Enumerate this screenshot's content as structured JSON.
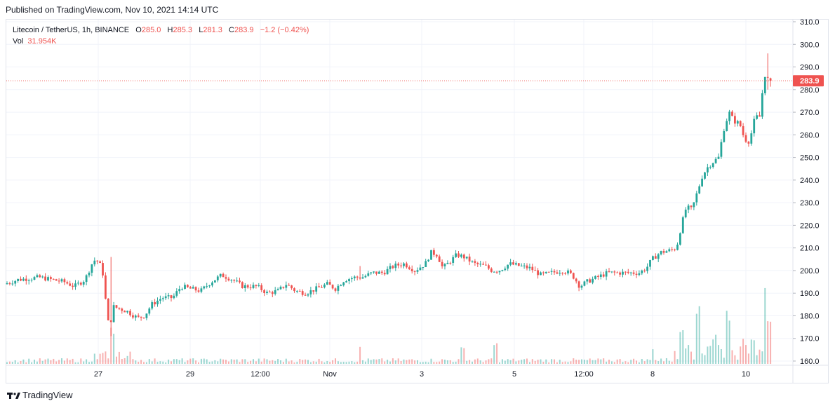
{
  "header": {
    "published": "Published on TradingView.com, Nov 10, 2021 14:14 UTC"
  },
  "legend": {
    "symbol": "Litecoin / TetherUS, 1h, BINANCE",
    "o_label": "O",
    "o_value": "285.0",
    "h_label": "H",
    "h_value": "285.3",
    "l_label": "L",
    "l_value": "281.3",
    "c_label": "C",
    "c_value": "283.9",
    "change": "−1.2 (−0.42%)",
    "vol_label": "Vol",
    "vol_value": "31.954K"
  },
  "footer": {
    "brand": "TradingView"
  },
  "colors": {
    "up": "#26a69a",
    "down": "#ef5350",
    "grid": "#f0f3fa",
    "axis_text": "#131722",
    "last_price": "#ef5350"
  },
  "chart_data": {
    "type": "candlestick",
    "symbol": "Litecoin / TetherUS",
    "interval": "1h",
    "exchange": "BINANCE",
    "ylim": [
      158,
      312
    ],
    "y_ticks": [
      "160.0",
      "170.0",
      "180.0",
      "190.0",
      "200.0",
      "210.0",
      "220.0",
      "230.0",
      "240.0",
      "250.0",
      "260.0",
      "270.0",
      "280.0",
      "290.0",
      "300.0",
      "310.0"
    ],
    "x_ticks": [
      "27",
      "29",
      "12:00",
      "Nov",
      "3",
      "5",
      "12:00",
      "8",
      "10"
    ],
    "last_price": "283.9",
    "grid": true,
    "price_path": [
      [
        0,
        193
      ],
      [
        30,
        196
      ],
      [
        60,
        197
      ],
      [
        95,
        195
      ],
      [
        110,
        193
      ],
      [
        125,
        196
      ],
      [
        135,
        203
      ],
      [
        140,
        205
      ],
      [
        146,
        203
      ],
      [
        152,
        197
      ],
      [
        156,
        180
      ],
      [
        160,
        175
      ],
      [
        166,
        184
      ],
      [
        185,
        182
      ],
      [
        200,
        179
      ],
      [
        210,
        180
      ],
      [
        220,
        185
      ],
      [
        235,
        188
      ],
      [
        250,
        188
      ],
      [
        262,
        193
      ],
      [
        275,
        192
      ],
      [
        290,
        191
      ],
      [
        305,
        195
      ],
      [
        320,
        198
      ],
      [
        335,
        196
      ],
      [
        350,
        193
      ],
      [
        370,
        193
      ],
      [
        385,
        190
      ],
      [
        400,
        191
      ],
      [
        412,
        194
      ],
      [
        425,
        191
      ],
      [
        440,
        190
      ],
      [
        455,
        192
      ],
      [
        470,
        194
      ],
      [
        482,
        192
      ],
      [
        495,
        196
      ],
      [
        510,
        197
      ],
      [
        520,
        197
      ],
      [
        535,
        199
      ],
      [
        550,
        199
      ],
      [
        565,
        202
      ],
      [
        580,
        203
      ],
      [
        595,
        200
      ],
      [
        610,
        203
      ],
      [
        618,
        208
      ],
      [
        627,
        207
      ],
      [
        635,
        201
      ],
      [
        645,
        204
      ],
      [
        655,
        207
      ],
      [
        665,
        206
      ],
      [
        680,
        203
      ],
      [
        695,
        202
      ],
      [
        705,
        200
      ],
      [
        715,
        200
      ],
      [
        730,
        203
      ],
      [
        745,
        202
      ],
      [
        760,
        201
      ],
      [
        775,
        198
      ],
      [
        790,
        199
      ],
      [
        805,
        200
      ],
      [
        815,
        199
      ],
      [
        822,
        197
      ],
      [
        830,
        193
      ],
      [
        840,
        195
      ],
      [
        855,
        197
      ],
      [
        870,
        199
      ],
      [
        885,
        199
      ],
      [
        900,
        199
      ],
      [
        915,
        199
      ],
      [
        925,
        201
      ],
      [
        933,
        205
      ],
      [
        945,
        208
      ],
      [
        960,
        209
      ],
      [
        968,
        210
      ],
      [
        975,
        220
      ],
      [
        982,
        228
      ],
      [
        990,
        227
      ],
      [
        998,
        235
      ],
      [
        1005,
        242
      ],
      [
        1013,
        246
      ],
      [
        1020,
        248
      ],
      [
        1028,
        250
      ],
      [
        1035,
        262
      ],
      [
        1043,
        270
      ],
      [
        1050,
        266
      ],
      [
        1058,
        265
      ],
      [
        1065,
        258
      ],
      [
        1072,
        257
      ],
      [
        1080,
        268
      ],
      [
        1087,
        268
      ],
      [
        1093,
        287
      ],
      [
        1098,
        285
      ],
      [
        1102,
        283.9
      ]
    ],
    "volume_spikes": [
      [
        160,
        3.2
      ],
      [
        513,
        1.6
      ],
      [
        660,
        1.5
      ],
      [
        707,
        1.8
      ],
      [
        930,
        1.5
      ],
      [
        972,
        3.1
      ],
      [
        995,
        5.1
      ],
      [
        1018,
        2.7
      ],
      [
        1038,
        4.8
      ],
      [
        1060,
        2.5
      ],
      [
        1072,
        2.3
      ],
      [
        1091,
        6.6
      ],
      [
        1097,
        4.2
      ]
    ]
  }
}
